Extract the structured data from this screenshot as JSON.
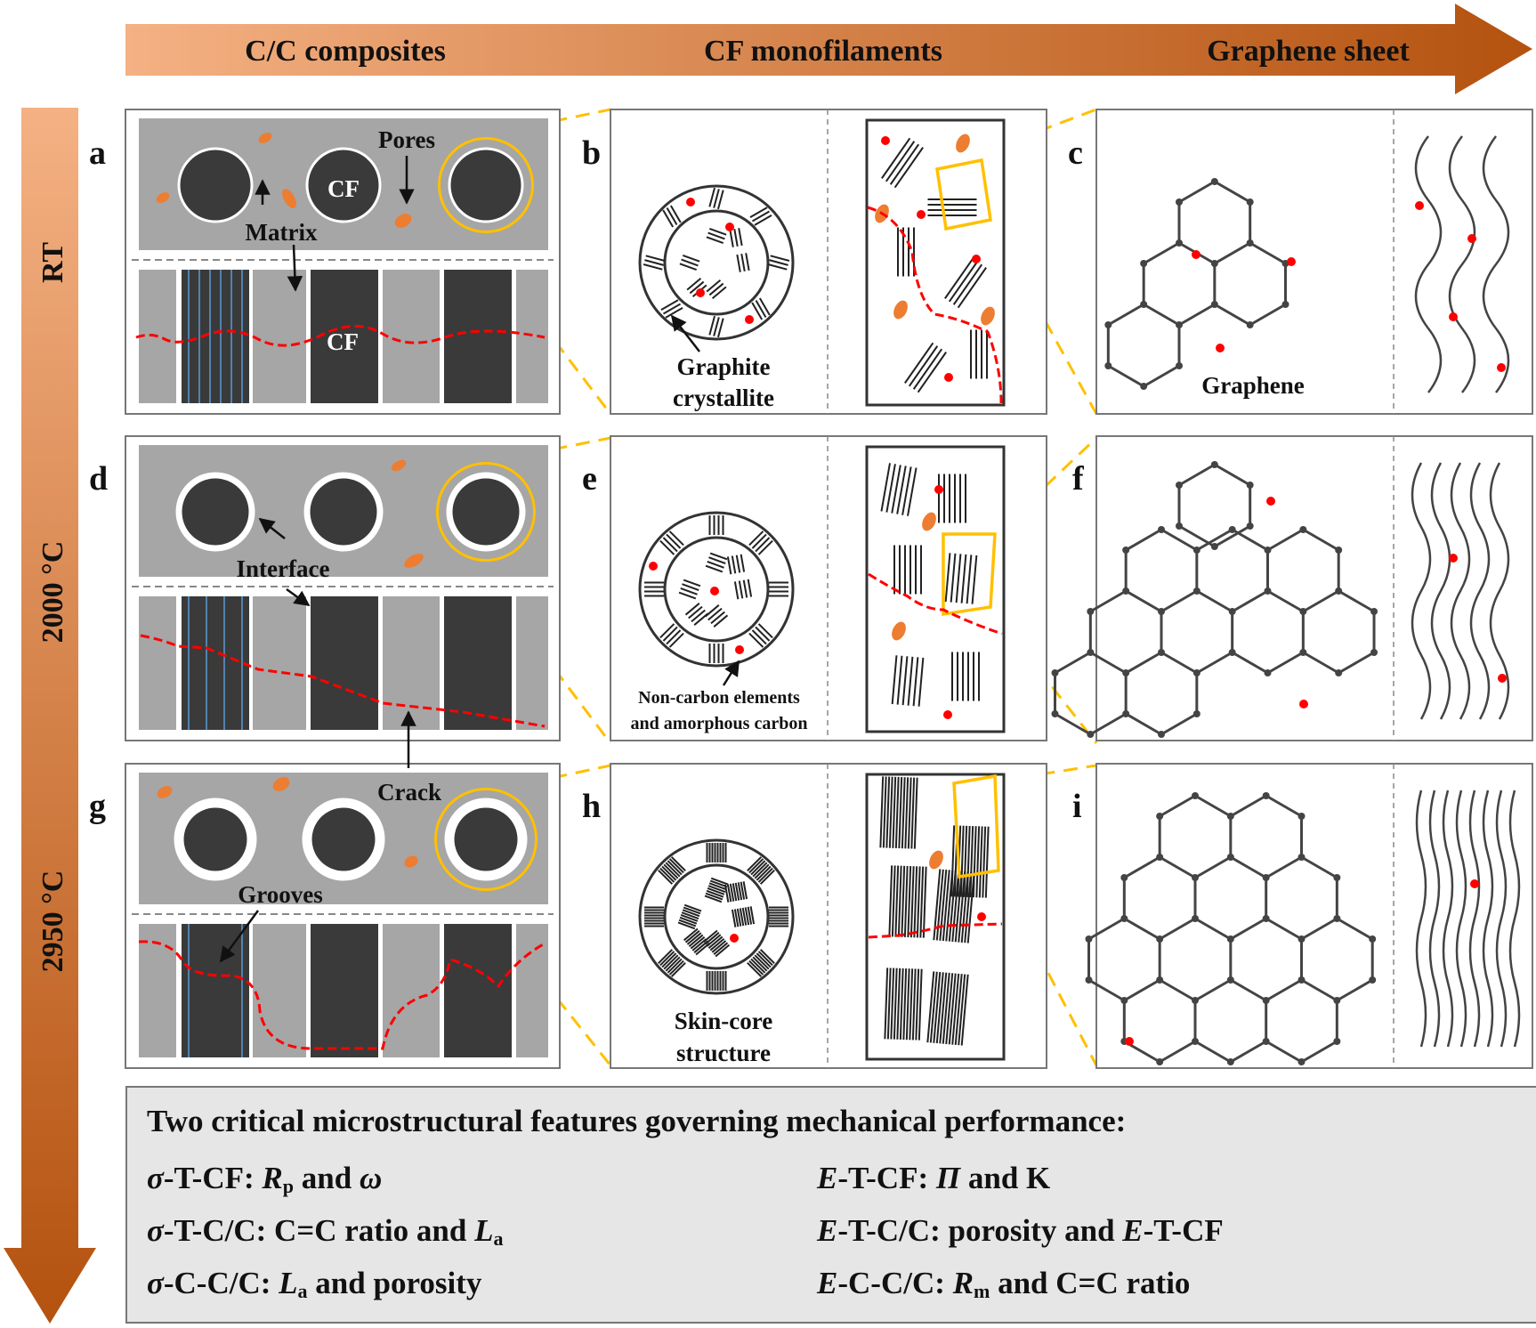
{
  "top_arrow": {
    "stages": [
      "C/C composites",
      "CF monofilaments",
      "Graphene sheet"
    ],
    "color_start": "#f4b183",
    "color_end": "#b4520f"
  },
  "temperature_axis": {
    "labels": [
      "RT",
      "2000 °C",
      "2950 °C"
    ]
  },
  "panel_letters": [
    "a",
    "b",
    "c",
    "d",
    "e",
    "f",
    "g",
    "h",
    "i"
  ],
  "annotations": {
    "pores": "Pores",
    "matrix": "Matrix",
    "cf": "CF",
    "interface": "Interface",
    "crack": "Crack",
    "grooves": "Grooves",
    "graphite_1": "Graphite",
    "graphite_2": "crystallite",
    "noncarbon_1": "Non-carbon elements",
    "noncarbon_2": "and amorphous carbon",
    "skincore_1": "Skin-core",
    "skincore_2": "structure",
    "graphene": "Graphene"
  },
  "colors": {
    "matrix_gray": "#a6a6a6",
    "fiber_dark": "#3a3a3a",
    "pore_orange": "#ed7d31",
    "crack_red": "#ff0000",
    "zoom_yellow": "#ffc000",
    "groove_blue": "#5b9bd5"
  },
  "summary": {
    "heading": "Two critical microstructural features governing mechanical performance:",
    "items": [
      {
        "sym": "σ",
        "prefix": "-T-CF: ",
        "s1": "R",
        "s1sub": "p",
        "mid": " and ",
        "s2": "ω",
        "rest": ""
      },
      {
        "sym": "E",
        "prefix": "-T-CF: ",
        "s1": "Π",
        "s1sub": "",
        "mid": " and K",
        "s2": "",
        "rest": ""
      },
      {
        "sym": "σ",
        "prefix": "-T-C/C: C=C ratio and ",
        "s1": "L",
        "s1sub": "a",
        "mid": "",
        "s2": "",
        "rest": ""
      },
      {
        "sym": "E",
        "prefix": "-T-C/C: porosity and ",
        "s1": "E",
        "s1sub": "",
        "mid": "-T-CF",
        "s2": "",
        "rest": ""
      },
      {
        "sym": "σ",
        "prefix": "-C-C/C: ",
        "s1": "L",
        "s1sub": "a",
        "mid": " and porosity",
        "s2": "",
        "rest": ""
      },
      {
        "sym": "E",
        "prefix": "-C-C/C: ",
        "s1": "R",
        "s1sub": "m",
        "mid": " and C=C ratio",
        "s2": "",
        "rest": ""
      }
    ]
  }
}
